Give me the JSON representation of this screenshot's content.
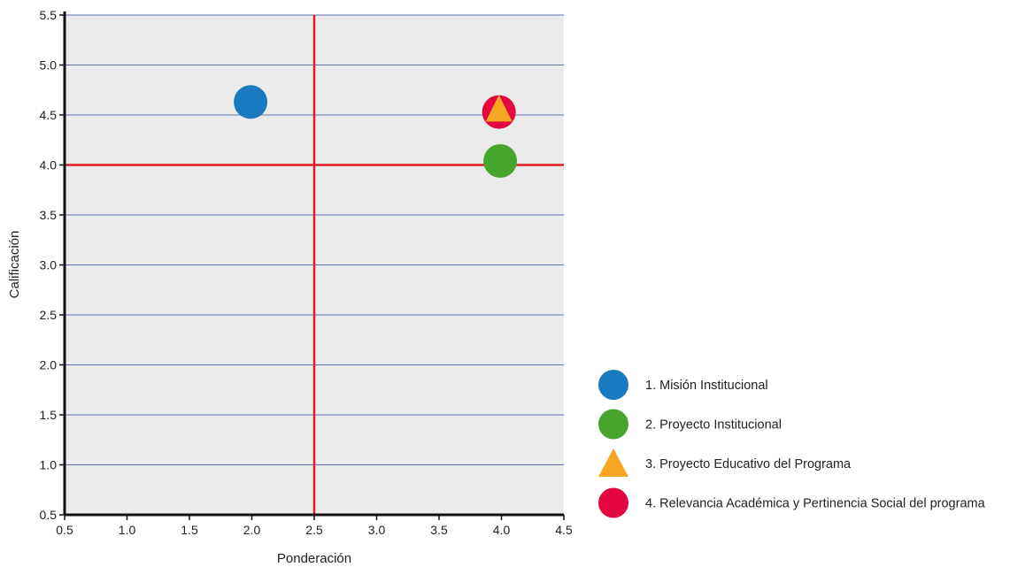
{
  "chart_data": {
    "type": "scatter",
    "xlabel": "Ponderación",
    "ylabel": "Calificación",
    "xlim": [
      0.5,
      4.5
    ],
    "ylim": [
      0.5,
      5.5
    ],
    "x_ticks": [
      "0.5",
      "1.0",
      "1.5",
      "2.0",
      "2.5",
      "3.0",
      "3.5",
      "4.0",
      "4.5"
    ],
    "y_ticks": [
      "0.5",
      "1.0",
      "1.5",
      "2.0",
      "2.5",
      "3.0",
      "3.5",
      "4.0",
      "4.5",
      "5.0",
      "5.5"
    ],
    "grid": "horizontal",
    "reference_lines": {
      "x": 2.5,
      "y": 4.0,
      "color": "#e01b24"
    },
    "legend_position": "bottom-right",
    "series": [
      {
        "name": "1. Misión Institucional",
        "marker": "circle",
        "color": "#1a7abf",
        "x": 1.99,
        "y": 4.63
      },
      {
        "name": "2. Proyecto Institucional",
        "marker": "circle",
        "color": "#45a52d",
        "x": 3.99,
        "y": 4.04
      },
      {
        "name": "3. Proyecto Educativo del Programa",
        "marker": "triangle",
        "color": "#f5a623",
        "x": 3.98,
        "y": 4.55
      },
      {
        "name": "4. Relevancia Académica y Pertinencia Social del programa",
        "marker": "circle",
        "color": "#e3063f",
        "x": 3.98,
        "y": 4.53
      }
    ]
  }
}
